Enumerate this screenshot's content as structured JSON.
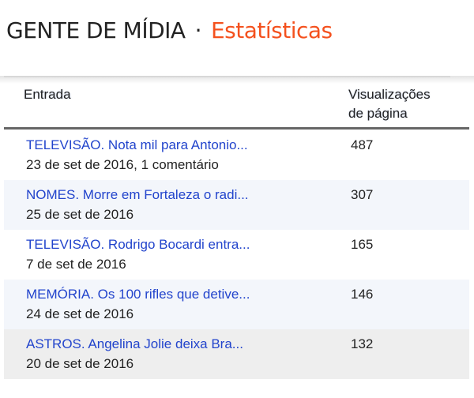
{
  "header": {
    "blog": "GENTE DE MÍDIA",
    "separator": "·",
    "section": "Estatísticas"
  },
  "table": {
    "columns": [
      "Entrada",
      "Visualizações",
      "de página"
    ],
    "rows": [
      {
        "title": "TELEVISÃO. Nota mil para Antonio...",
        "meta": "23 de set de 2016, 1 comentário",
        "views": "487"
      },
      {
        "title": "NOMES. Morre em Fortaleza o radi...",
        "meta": "25 de set de 2016",
        "views": "307"
      },
      {
        "title": "TELEVISÃO. Rodrigo Bocardi entra...",
        "meta": "7 de set de 2016",
        "views": "165"
      },
      {
        "title": "MEMÓRIA. Os 100 rifles que detive...",
        "meta": "24 de set de 2016",
        "views": "146"
      },
      {
        "title": "ASTROS. Angelina Jolie deixa Bra...",
        "meta": "20 de set de 2016",
        "views": "132"
      }
    ]
  },
  "colors": {
    "accent": "#f4511e",
    "link": "#2244cc",
    "row_alt": "#f3f6fb",
    "row_hover": "#eeeeee"
  }
}
